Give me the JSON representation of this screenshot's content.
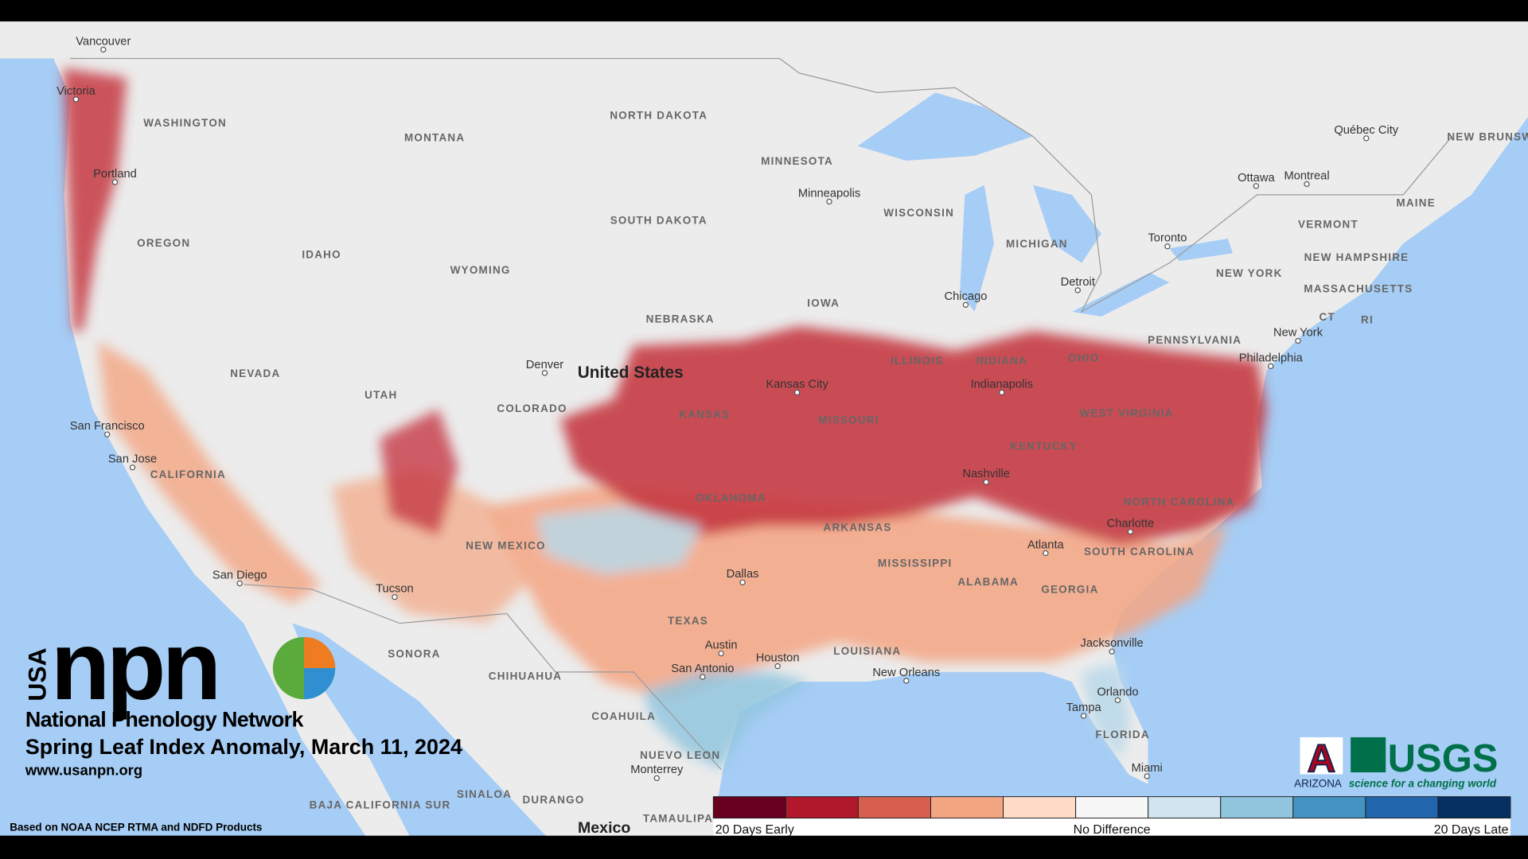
{
  "map": {
    "countries": [
      "United States",
      "Mexico"
    ],
    "states": [
      "WASHINGTON",
      "MONTANA",
      "NORTH DAKOTA",
      "MINNESOTA",
      "SOUTH DAKOTA",
      "WISCONSIN",
      "MICHIGAN",
      "OREGON",
      "IDAHO",
      "WYOMING",
      "NEBRASKA",
      "IOWA",
      "ILLINOIS",
      "INDIANA",
      "OHIO",
      "PENNSYLVANIA",
      "NEW YORK",
      "VERMONT",
      "NEW HAMPSHIRE",
      "MAINE",
      "MASSACHUSETTS",
      "CT",
      "RI",
      "NEVADA",
      "UTAH",
      "COLORADO",
      "KANSAS",
      "MISSOURI",
      "WEST VIRGINIA",
      "KENTUCKY",
      "CALIFORNIA",
      "OKLAHOMA",
      "NORTH CAROLINA",
      "ARKANSAS",
      "SOUTH CAROLINA",
      "MISSISSIPPI",
      "ALABAMA",
      "GEORGIA",
      "NEW MEXICO",
      "TEXAS",
      "LOUISIANA",
      "FLORIDA",
      "SONORA",
      "CHIHUAHUA",
      "COAHUILA",
      "NUEVO LEON",
      "SINALOA",
      "DURANGO",
      "BAJA CALIFORNIA SUR",
      "TAMAULIPAS",
      "NEW BRUNSWICK"
    ],
    "cities": [
      "Vancouver",
      "Victoria",
      "Portland",
      "Minneapolis",
      "Toronto",
      "Ottawa",
      "Montreal",
      "Québec City",
      "Chicago",
      "Detroit",
      "New York",
      "Philadelphia",
      "Denver",
      "Kansas City",
      "Indianapolis",
      "San Francisco",
      "San Jose",
      "San Diego",
      "Tucson",
      "Nashville",
      "Charlotte",
      "Atlanta",
      "Dallas",
      "Austin",
      "San Antonio",
      "Houston",
      "New Orleans",
      "Jacksonville",
      "Orlando",
      "Tampa",
      "Miami",
      "Monterrey"
    ],
    "legend": {
      "colors": [
        "#67001f",
        "#b2182b",
        "#d6604d",
        "#f4a582",
        "#fddbc7",
        "#f7f7f7",
        "#d1e5f0",
        "#92c5de",
        "#4393c3",
        "#2166ac",
        "#053061"
      ],
      "labels": [
        "20 Days Early",
        "No Difference",
        "20 Days Late"
      ]
    }
  },
  "branding": {
    "usa": "USA",
    "npn": "npn",
    "network": "National Phenology Network",
    "title": "Spring Leaf Index Anomaly, March 11, 2024",
    "url": "www.usanpn.org",
    "source": "Based on NOAA NCEP RTMA and NDFD Products",
    "arizona_letter": "A",
    "arizona": "ARIZONA",
    "usgs": "USGS",
    "usgs_tagline": "science for a changing world"
  }
}
